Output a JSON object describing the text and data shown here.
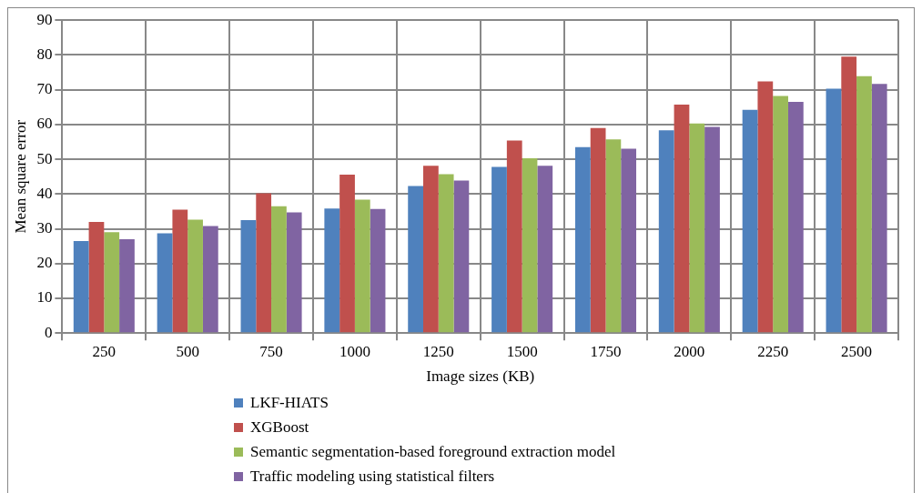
{
  "chart_data": {
    "type": "bar",
    "xlabel": "Image sizes (KB)",
    "ylabel": "Mean square error",
    "categories": [
      "250",
      "500",
      "750",
      "1000",
      "1250",
      "1500",
      "1750",
      "2000",
      "2250",
      "2500"
    ],
    "series": [
      {
        "name": "LKF-HIATS",
        "color": "#4f81bd",
        "values": [
          26.5,
          28.7,
          32.5,
          35.8,
          42.3,
          47.8,
          53.5,
          58.3,
          64.2,
          70.3
        ]
      },
      {
        "name": "XGBoost",
        "color": "#c0504d",
        "values": [
          32,
          35.5,
          40.2,
          45.6,
          48.1,
          55.4,
          59,
          65.7,
          72.4,
          79.5
        ]
      },
      {
        "name": "Semantic segmentation-based foreground extraction model",
        "color": "#9bbb59",
        "values": [
          29,
          32.6,
          36.5,
          38.4,
          45.7,
          50.3,
          55.7,
          60.3,
          68.2,
          73.9
        ]
      },
      {
        "name": "Traffic modeling using statistical filters",
        "color": "#8064a2",
        "values": [
          27,
          30.8,
          34.7,
          35.7,
          43.9,
          48.1,
          53,
          59.3,
          66.5,
          71.7
        ]
      }
    ],
    "ylim": [
      0,
      90
    ],
    "yticks": [
      0,
      10,
      20,
      30,
      40,
      50,
      60,
      70,
      80,
      90
    ],
    "grid": true,
    "legend": "bottom"
  }
}
